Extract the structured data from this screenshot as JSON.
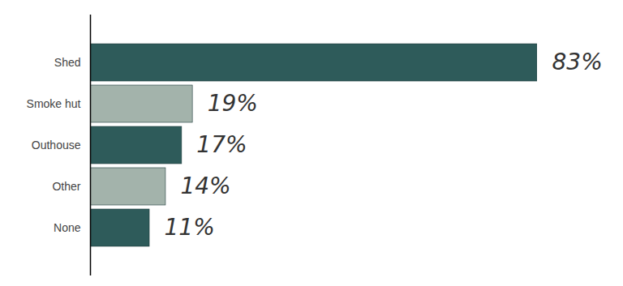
{
  "chart_data": {
    "type": "bar",
    "orientation": "horizontal",
    "categories": [
      "Shed",
      "Smoke hut",
      "Outhouse",
      "Other",
      "None"
    ],
    "values": [
      83,
      19,
      17,
      14,
      11
    ],
    "value_labels": [
      "83%",
      "19%",
      "17%",
      "14%",
      "11%"
    ],
    "colors": [
      "#2e5b5a",
      "#a3b3ab",
      "#2e5b5a",
      "#a3b3ab",
      "#2e5b5a"
    ],
    "data_labels": true,
    "tick_labels": "y"
  }
}
